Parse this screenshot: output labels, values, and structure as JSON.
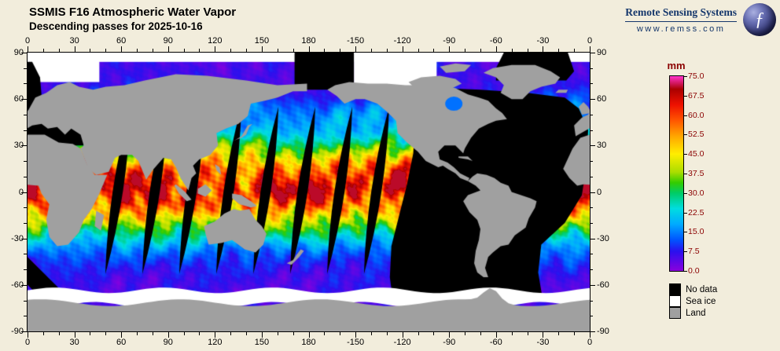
{
  "header": {
    "title": "SSMIS F16 Atmospheric Water Vapor",
    "subtitle": "Descending passes for 2025-10-16"
  },
  "branding": {
    "name": "Remote Sensing Systems",
    "url": "www.remss.com",
    "logo_glyph": "ƒ",
    "color": "#14366b"
  },
  "map": {
    "lon_tick_labels": [
      "0",
      "30",
      "60",
      "90",
      "120",
      "150",
      "180",
      "-150",
      "-120",
      "-90",
      "-60",
      "-30",
      "0"
    ],
    "lat_tick_labels": [
      "90",
      "60",
      "30",
      "0",
      "-30",
      "-60",
      "-90"
    ],
    "land_color": "#a0a0a0",
    "no_data_color": "#000000",
    "sea_ice_color": "#ffffff"
  },
  "colorbar": {
    "unit": "mm",
    "min": 0,
    "max": 75,
    "tick_labels": [
      "75.0",
      "67.5",
      "60.0",
      "52.5",
      "45.0",
      "37.5",
      "30.0",
      "22.5",
      "15.0",
      "7.5",
      "0.0"
    ],
    "label_color": "#8b0000",
    "stops": [
      {
        "v": 0,
        "c": "#8a00dd"
      },
      {
        "v": 7.5,
        "c": "#2b10ee"
      },
      {
        "v": 12,
        "c": "#0055ff"
      },
      {
        "v": 18,
        "c": "#00aaff"
      },
      {
        "v": 24,
        "c": "#00dde0"
      },
      {
        "v": 30,
        "c": "#00cc66"
      },
      {
        "v": 34,
        "c": "#33cc00"
      },
      {
        "v": 38,
        "c": "#aadd00"
      },
      {
        "v": 45,
        "c": "#ffee00"
      },
      {
        "v": 52,
        "c": "#ffa500"
      },
      {
        "v": 58,
        "c": "#ff5500"
      },
      {
        "v": 64,
        "c": "#ee1100"
      },
      {
        "v": 70,
        "c": "#aa0000"
      },
      {
        "v": 75,
        "c": "#ff33cc"
      }
    ]
  },
  "legend": {
    "items": [
      {
        "label": "No data",
        "color": "#000000"
      },
      {
        "label": "Sea ice",
        "color": "#ffffff"
      },
      {
        "label": "Land",
        "color": "#a0a0a0"
      }
    ]
  }
}
